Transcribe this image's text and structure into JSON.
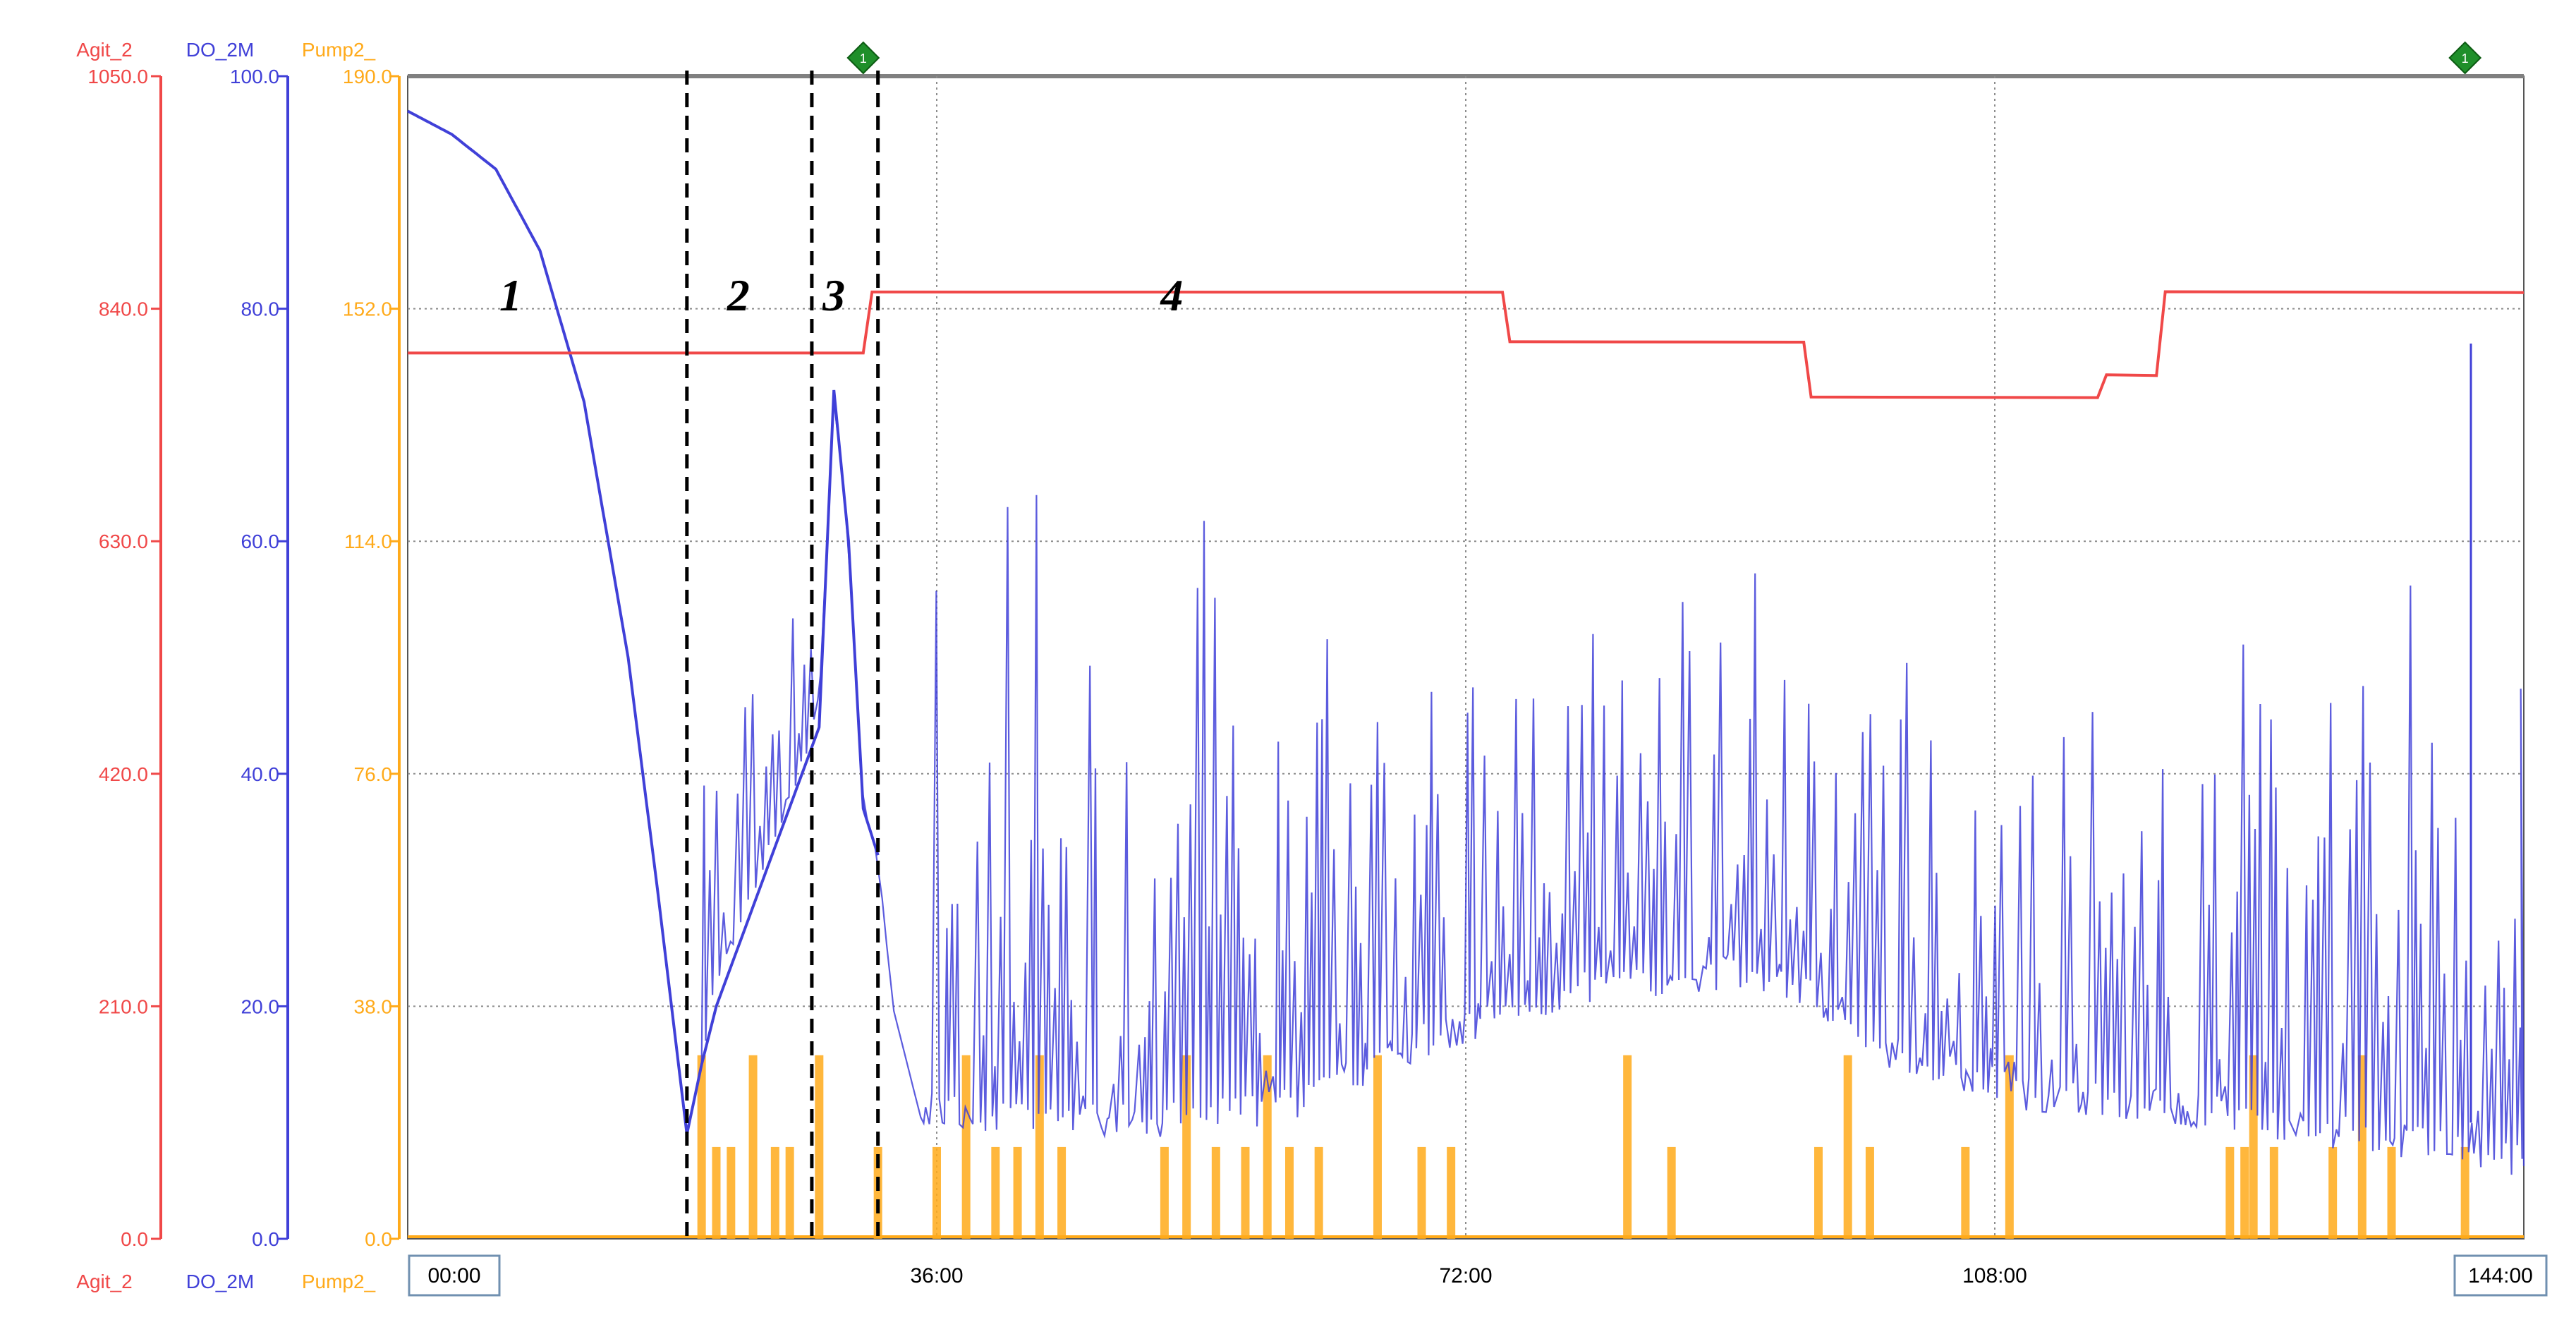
{
  "chart_data": {
    "type": "line",
    "axes": [
      {
        "name": "Agit_2",
        "color": "#f04848",
        "ticks": [
          "1050.0",
          "840.0",
          "630.0",
          "420.0",
          "210.0",
          "0.0"
        ],
        "ylim": [
          0,
          1050
        ]
      },
      {
        "name": "DO_2M",
        "color": "#4040d8",
        "ticks": [
          "100.0",
          "80.0",
          "60.0",
          "40.0",
          "20.0",
          "0.0"
        ],
        "ylim": [
          0,
          100
        ]
      },
      {
        "name": "Pump2_",
        "color": "#ffaa1a",
        "ticks": [
          "190.0",
          "152.0",
          "114.0",
          "76.0",
          "38.0",
          "0.0"
        ],
        "ylim": [
          0,
          190
        ]
      }
    ],
    "x_ticks": [
      "00:00",
      "36:00",
      "72:00",
      "108:00",
      "144:00"
    ],
    "x_range_hours": [
      0,
      144
    ],
    "grid": true,
    "phase_labels": [
      {
        "text": "1",
        "x": 7
      },
      {
        "text": "2",
        "x": 22.5
      },
      {
        "text": "3",
        "x": 29
      },
      {
        "text": "4",
        "x": 52
      }
    ],
    "phase_boundaries": [
      19,
      27.5,
      32
    ],
    "markers": [
      {
        "symbol": "1",
        "x": 31
      },
      {
        "symbol": "1",
        "x": 140
      }
    ],
    "series": [
      {
        "name": "Agit_2",
        "axis": "Agit_2",
        "x": [
          0,
          31,
          31.6,
          74.5,
          75,
          95,
          95.5,
          115,
          115.6,
          119,
          119.6,
          144
        ],
        "y": [
          800,
          800,
          855,
          855,
          810,
          810,
          760,
          760,
          780,
          780,
          855,
          855
        ]
      },
      {
        "name": "DO_2M",
        "axis": "DO_2M",
        "x": [
          0,
          3,
          6,
          9,
          12,
          15,
          17,
          19,
          20,
          21,
          28,
          29,
          30,
          31,
          32,
          33,
          35,
          40,
          50,
          60,
          70,
          80,
          90,
          95,
          100,
          110,
          120,
          130,
          140,
          144
        ],
        "y": [
          97,
          95,
          92,
          85,
          72,
          50,
          30,
          9,
          15,
          20,
          44,
          73,
          60,
          37,
          33,
          20,
          10,
          9,
          8.5,
          10,
          16,
          20,
          21.5,
          20,
          15,
          11,
          10,
          8,
          6,
          5
        ],
        "spike_peaks": [
          {
            "x_range": [
              20,
              28
            ],
            "peak": 62
          },
          {
            "x_range": [
              36,
              71
            ],
            "peak": 65
          },
          {
            "x_range": [
              72,
              95
            ],
            "peak": 60
          },
          {
            "x_range": [
              95,
              120
            ],
            "peak": 55
          },
          {
            "x_range": [
              122,
              144
            ],
            "peak": 60
          },
          {
            "x_range": [
              140,
              141
            ],
            "peak": 77
          }
        ]
      },
      {
        "name": "Pump2_",
        "axis": "Pump2_",
        "pulse_x": [
          20,
          21,
          22,
          23.5,
          25,
          26,
          28,
          32,
          36,
          38,
          40,
          41.5,
          43,
          44.5,
          51.5,
          53,
          55,
          57,
          58.5,
          60,
          62,
          66,
          69,
          71,
          83,
          86,
          96,
          98,
          99.5,
          106,
          109,
          124,
          125,
          125.6,
          127,
          131,
          133,
          135,
          140
        ]
      }
    ]
  }
}
